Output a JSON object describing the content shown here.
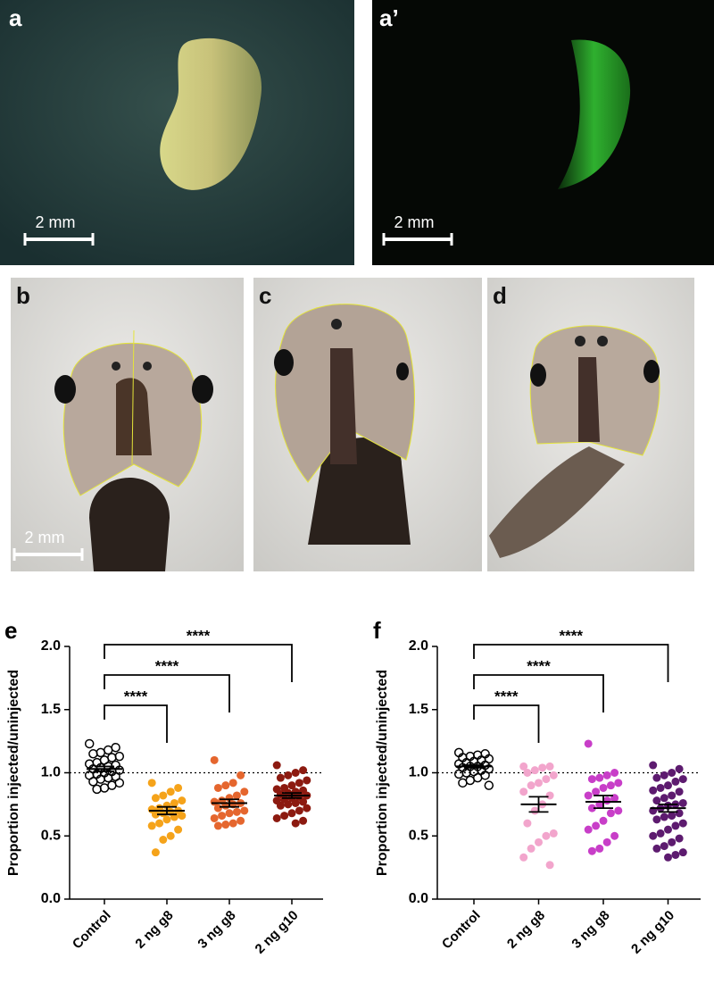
{
  "photos": [
    {
      "label": "a",
      "scale_bar": "2 mm"
    },
    {
      "label": "a’",
      "scale_bar": "2 mm"
    },
    {
      "label": "b",
      "scale_bar": "2 mm"
    },
    {
      "label": "c"
    },
    {
      "label": "d"
    }
  ],
  "chart_data": [
    {
      "type": "strip",
      "panel": "e",
      "y_label": "Proportion injected/uninjected",
      "ylim": [
        0,
        2
      ],
      "yticks": [
        {
          "value": 0,
          "label": "0.0"
        },
        0.5,
        {
          "value": 1,
          "label": "1.0"
        },
        1.5,
        {
          "value": 2,
          "label": "2.0"
        }
      ],
      "reference_line": 1,
      "groups": [
        {
          "name": "Control",
          "color": "#000000",
          "filled": false,
          "mean": 1.03,
          "sem": 0.02,
          "values": [
            1.23,
            1.2,
            1.18,
            1.16,
            1.15,
            1.13,
            1.12,
            1.1,
            1.08,
            1.07,
            1.06,
            1.05,
            1.04,
            1.03,
            1.02,
            1.01,
            1.0,
            0.99,
            0.98,
            0.97,
            0.96,
            0.95,
            0.93,
            0.92,
            0.9,
            0.88,
            0.87
          ]
        },
        {
          "name": "2 ng g8",
          "color": "#f5a31a",
          "filled": true,
          "mean": 0.7,
          "sem": 0.03,
          "significance": "****",
          "values": [
            0.92,
            0.88,
            0.85,
            0.82,
            0.8,
            0.78,
            0.76,
            0.74,
            0.72,
            0.71,
            0.7,
            0.69,
            0.68,
            0.67,
            0.66,
            0.65,
            0.63,
            0.6,
            0.58,
            0.55,
            0.5,
            0.47,
            0.37
          ]
        },
        {
          "name": "3 ng g8",
          "color": "#e5662e",
          "filled": true,
          "mean": 0.76,
          "sem": 0.03,
          "significance": "****",
          "values": [
            1.1,
            0.98,
            0.92,
            0.9,
            0.88,
            0.85,
            0.82,
            0.8,
            0.78,
            0.77,
            0.76,
            0.75,
            0.74,
            0.72,
            0.7,
            0.69,
            0.68,
            0.66,
            0.64,
            0.62,
            0.6,
            0.59,
            0.58
          ]
        },
        {
          "name": "2 ng g10",
          "color": "#8c1a10",
          "filled": true,
          "mean": 0.82,
          "sem": 0.02,
          "significance": "****",
          "values": [
            1.06,
            1.02,
            1.0,
            0.98,
            0.96,
            0.94,
            0.92,
            0.9,
            0.88,
            0.87,
            0.86,
            0.85,
            0.84,
            0.83,
            0.82,
            0.81,
            0.8,
            0.79,
            0.78,
            0.77,
            0.76,
            0.75,
            0.74,
            0.72,
            0.7,
            0.68,
            0.66,
            0.64,
            0.62,
            0.6
          ]
        }
      ]
    },
    {
      "type": "strip",
      "panel": "f",
      "y_label": "Proportion injected/uninjected",
      "ylim": [
        0,
        2
      ],
      "yticks": [
        {
          "value": 0,
          "label": "0.0"
        },
        0.5,
        {
          "value": 1,
          "label": "1.0"
        },
        1.5,
        {
          "value": 2,
          "label": "2.0"
        }
      ],
      "reference_line": 1,
      "groups": [
        {
          "name": "Control",
          "color": "#000000",
          "filled": false,
          "mean": 1.05,
          "sem": 0.01,
          "values": [
            1.16,
            1.15,
            1.14,
            1.13,
            1.12,
            1.11,
            1.1,
            1.09,
            1.08,
            1.07,
            1.06,
            1.05,
            1.05,
            1.04,
            1.03,
            1.02,
            1.01,
            1.0,
            0.99,
            0.98,
            0.96,
            0.94,
            0.92,
            0.9
          ]
        },
        {
          "name": "2 ng g8",
          "color": "#f2a5cc",
          "filled": true,
          "mean": 0.75,
          "sem": 0.06,
          "significance": "****",
          "values": [
            1.05,
            1.05,
            1.04,
            1.02,
            1.0,
            0.98,
            0.95,
            0.92,
            0.9,
            0.85,
            0.82,
            0.75,
            0.7,
            0.6,
            0.52,
            0.5,
            0.45,
            0.4,
            0.33,
            0.27
          ]
        },
        {
          "name": "3 ng g8",
          "color": "#c83ec8",
          "filled": true,
          "mean": 0.77,
          "sem": 0.05,
          "significance": "****",
          "values": [
            1.23,
            1.0,
            0.98,
            0.96,
            0.95,
            0.92,
            0.9,
            0.88,
            0.85,
            0.82,
            0.8,
            0.78,
            0.75,
            0.72,
            0.7,
            0.68,
            0.62,
            0.58,
            0.55,
            0.5,
            0.45,
            0.4,
            0.38
          ]
        },
        {
          "name": "2 ng g10",
          "color": "#5d1b6f",
          "filled": true,
          "mean": 0.72,
          "sem": 0.03,
          "significance": "****",
          "values": [
            1.06,
            1.03,
            1.0,
            0.98,
            0.96,
            0.95,
            0.93,
            0.9,
            0.88,
            0.86,
            0.85,
            0.82,
            0.8,
            0.78,
            0.76,
            0.75,
            0.74,
            0.72,
            0.7,
            0.68,
            0.66,
            0.65,
            0.63,
            0.6,
            0.58,
            0.55,
            0.52,
            0.5,
            0.48,
            0.45,
            0.42,
            0.4,
            0.37,
            0.35,
            0.33
          ]
        }
      ]
    }
  ]
}
